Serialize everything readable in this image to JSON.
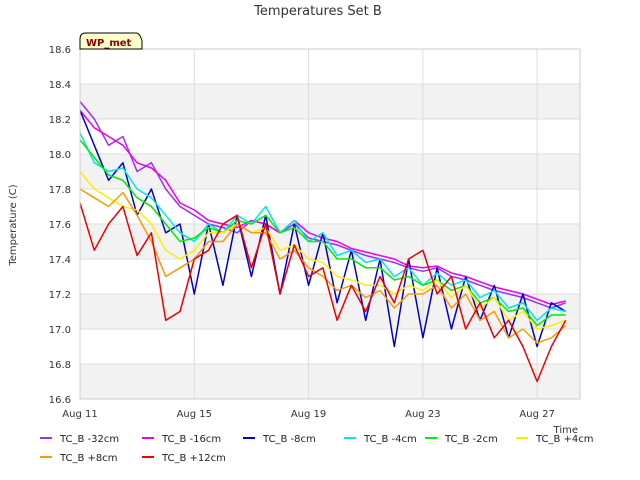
{
  "chart_data": {
    "type": "line",
    "title": "Temperatures Set B",
    "xlabel": "Time",
    "ylabel": "Temperature (C)",
    "badge": "WP_met",
    "xlim": [
      0,
      17.5
    ],
    "ylim": [
      16.6,
      18.6
    ],
    "x_ticks": [
      {
        "label": "Aug 11",
        "x": 0
      },
      {
        "label": "Aug 15",
        "x": 4
      },
      {
        "label": "Aug 19",
        "x": 8
      },
      {
        "label": "Aug 23",
        "x": 12
      },
      {
        "label": "Aug 27",
        "x": 16
      }
    ],
    "y_ticks": [
      16.6,
      16.8,
      17.0,
      17.2,
      17.4,
      17.6,
      17.8,
      18.0,
      18.2,
      18.4,
      18.6
    ],
    "grid": true,
    "legend_position": "bottom",
    "x": [
      0,
      0.5,
      1,
      1.5,
      2,
      2.5,
      3,
      3.5,
      4,
      4.5,
      5,
      5.5,
      6,
      6.5,
      7,
      7.5,
      8,
      8.5,
      9,
      9.5,
      10,
      10.5,
      11,
      11.5,
      12,
      12.5,
      13,
      13.5,
      14,
      14.5,
      15,
      15.5,
      16,
      16.5,
      17
    ],
    "series": [
      {
        "name": "TC_B -32cm",
        "color": "#9b30ff",
        "values": [
          18.3,
          18.2,
          18.05,
          18.1,
          17.9,
          17.95,
          17.8,
          17.7,
          17.65,
          17.6,
          17.58,
          17.55,
          17.62,
          17.6,
          17.55,
          17.6,
          17.52,
          17.5,
          17.48,
          17.45,
          17.42,
          17.4,
          17.38,
          17.35,
          17.33,
          17.35,
          17.3,
          17.28,
          17.25,
          17.22,
          17.2,
          17.18,
          17.15,
          17.12,
          17.15
        ]
      },
      {
        "name": "TC_B -16cm",
        "color": "#ee00ee",
        "values": [
          18.25,
          18.15,
          18.1,
          18.05,
          17.95,
          17.92,
          17.85,
          17.72,
          17.68,
          17.62,
          17.6,
          17.58,
          17.62,
          17.6,
          17.55,
          17.62,
          17.55,
          17.52,
          17.5,
          17.46,
          17.44,
          17.42,
          17.4,
          17.36,
          17.35,
          17.36,
          17.32,
          17.3,
          17.27,
          17.24,
          17.22,
          17.2,
          17.17,
          17.14,
          17.16
        ]
      },
      {
        "name": "TC_B -8cm",
        "color": "#0000cc",
        "values": [
          18.25,
          18.05,
          17.85,
          17.95,
          17.65,
          17.8,
          17.55,
          17.6,
          17.2,
          17.6,
          17.25,
          17.65,
          17.3,
          17.65,
          17.2,
          17.6,
          17.25,
          17.55,
          17.15,
          17.45,
          17.05,
          17.4,
          16.9,
          17.4,
          16.95,
          17.35,
          17.0,
          17.3,
          17.05,
          17.25,
          16.95,
          17.2,
          16.9,
          17.15,
          17.1
        ]
      },
      {
        "name": "TC_B -4cm",
        "color": "#00e5ee",
        "values": [
          18.12,
          17.95,
          17.9,
          17.92,
          17.8,
          17.75,
          17.65,
          17.55,
          17.5,
          17.6,
          17.55,
          17.65,
          17.6,
          17.7,
          17.55,
          17.62,
          17.5,
          17.55,
          17.42,
          17.45,
          17.38,
          17.4,
          17.3,
          17.35,
          17.25,
          17.32,
          17.25,
          17.28,
          17.18,
          17.22,
          17.12,
          17.15,
          17.05,
          17.12,
          17.1
        ]
      },
      {
        "name": "TC_B -2cm",
        "color": "#00ee00",
        "values": [
          18.08,
          17.98,
          17.88,
          17.85,
          17.75,
          17.7,
          17.6,
          17.5,
          17.52,
          17.58,
          17.55,
          17.62,
          17.6,
          17.65,
          17.55,
          17.58,
          17.5,
          17.5,
          17.4,
          17.4,
          17.35,
          17.35,
          17.28,
          17.3,
          17.25,
          17.28,
          17.22,
          17.25,
          17.15,
          17.18,
          17.1,
          17.12,
          17.02,
          17.08,
          17.08
        ]
      },
      {
        "name": "TC_B +4cm",
        "color": "#ffee00",
        "values": [
          17.9,
          17.8,
          17.75,
          17.7,
          17.68,
          17.6,
          17.45,
          17.4,
          17.45,
          17.55,
          17.55,
          17.6,
          17.55,
          17.58,
          17.45,
          17.48,
          17.4,
          17.38,
          17.3,
          17.28,
          17.25,
          17.25,
          17.2,
          17.25,
          17.22,
          17.28,
          17.18,
          17.25,
          17.12,
          17.18,
          17.05,
          17.1,
          17.0,
          17.02,
          17.05
        ]
      },
      {
        "name": "TC_B +8cm",
        "color": "#ff9900",
        "values": [
          17.8,
          17.75,
          17.7,
          17.78,
          17.65,
          17.5,
          17.3,
          17.35,
          17.4,
          17.5,
          17.5,
          17.6,
          17.55,
          17.55,
          17.4,
          17.45,
          17.35,
          17.3,
          17.22,
          17.25,
          17.18,
          17.22,
          17.12,
          17.2,
          17.2,
          17.25,
          17.12,
          17.2,
          17.05,
          17.1,
          16.95,
          17.0,
          16.92,
          16.95,
          17.02
        ]
      },
      {
        "name": "TC_B +12cm",
        "color": "#ee0000",
        "values": [
          17.72,
          17.45,
          17.6,
          17.7,
          17.42,
          17.55,
          17.05,
          17.1,
          17.4,
          17.45,
          17.6,
          17.65,
          17.35,
          17.6,
          17.2,
          17.48,
          17.3,
          17.35,
          17.05,
          17.25,
          17.1,
          17.3,
          17.15,
          17.4,
          17.45,
          17.2,
          17.3,
          17.0,
          17.15,
          16.95,
          17.05,
          16.9,
          16.7,
          16.9,
          17.05
        ]
      }
    ]
  }
}
